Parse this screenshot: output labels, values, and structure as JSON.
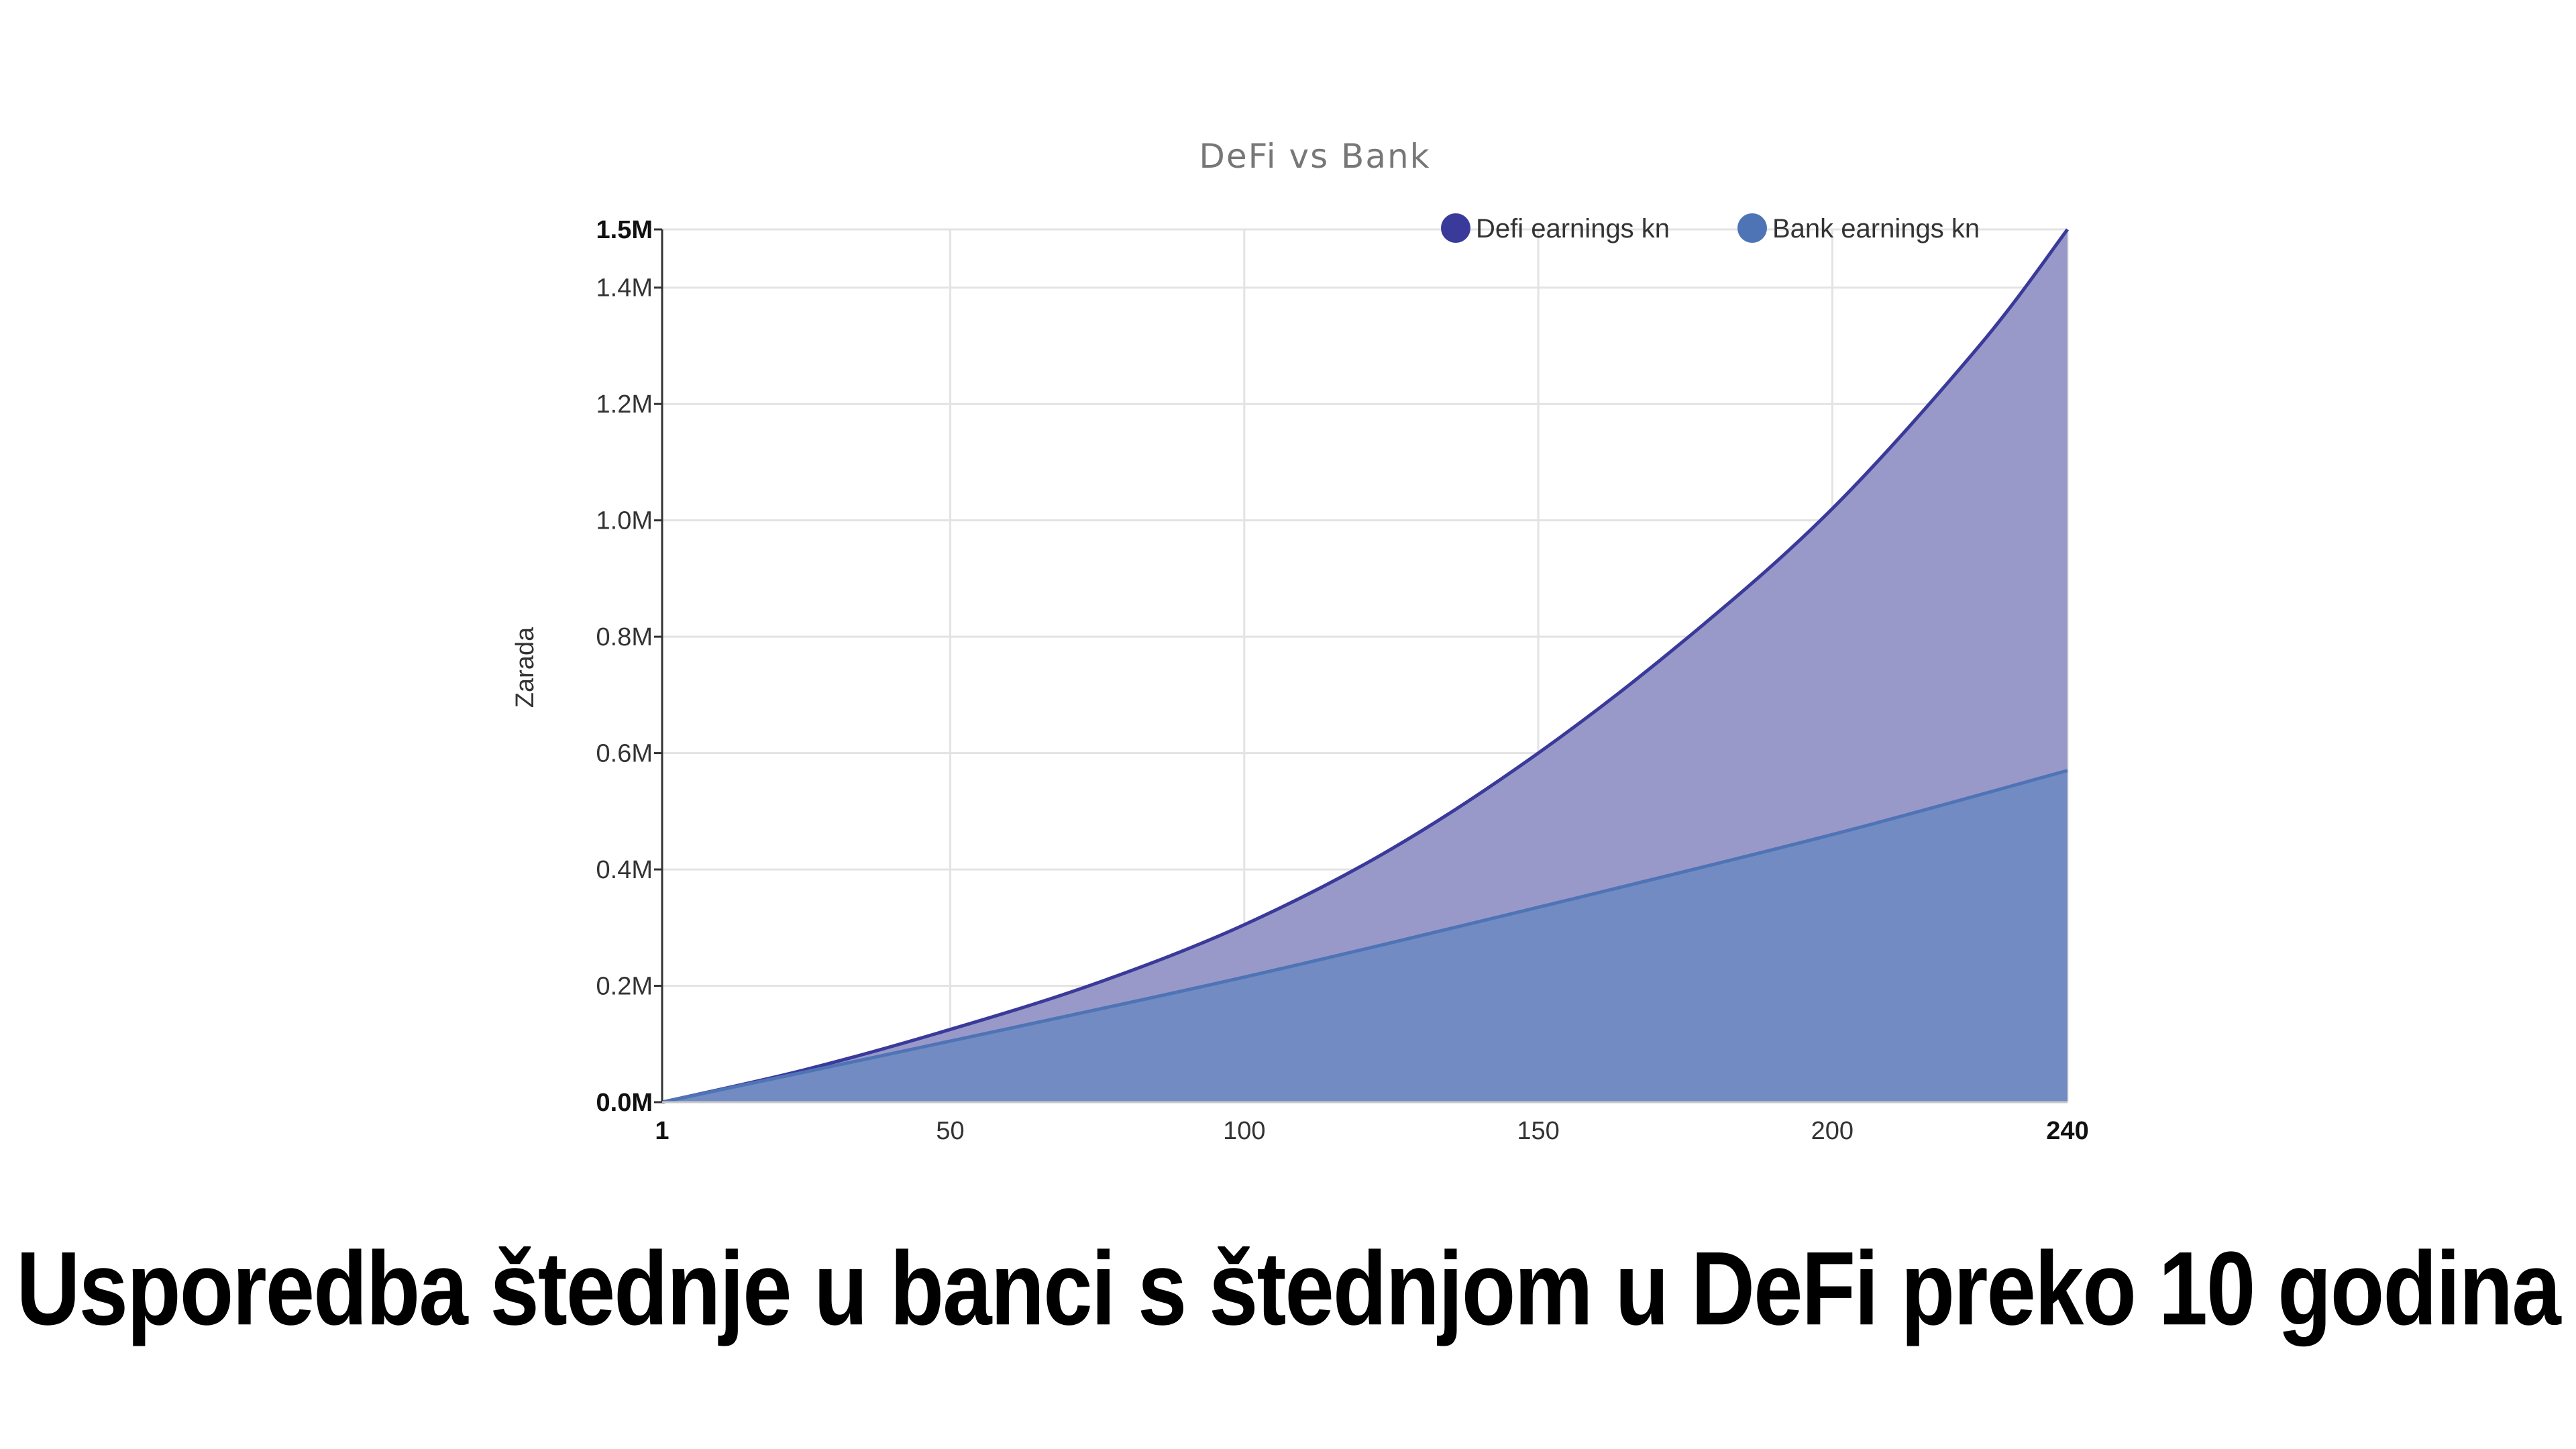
{
  "chart_data": {
    "type": "area",
    "title": "DeFi vs Bank",
    "xlabel": "",
    "ylabel": "Zarada",
    "xlim": [
      1,
      240
    ],
    "ylim": [
      0,
      1500000
    ],
    "x_ticks": [
      {
        "value": 1,
        "label": "1",
        "bold": true
      },
      {
        "value": 50,
        "label": "50",
        "bold": false
      },
      {
        "value": 100,
        "label": "100",
        "bold": false
      },
      {
        "value": 150,
        "label": "150",
        "bold": false
      },
      {
        "value": 200,
        "label": "200",
        "bold": false
      },
      {
        "value": 240,
        "label": "240",
        "bold": true
      }
    ],
    "y_ticks": [
      {
        "value": 0,
        "label": "0.0M",
        "bold": true
      },
      {
        "value": 200000,
        "label": "0.2M",
        "bold": false
      },
      {
        "value": 400000,
        "label": "0.4M",
        "bold": false
      },
      {
        "value": 600000,
        "label": "0.6M",
        "bold": false
      },
      {
        "value": 800000,
        "label": "0.8M",
        "bold": false
      },
      {
        "value": 1000000,
        "label": "1.0M",
        "bold": false
      },
      {
        "value": 1200000,
        "label": "1.2M",
        "bold": false
      },
      {
        "value": 1400000,
        "label": "1.4M",
        "bold": false
      },
      {
        "value": 1500000,
        "label": "1.5M",
        "bold": true
      }
    ],
    "grid": true,
    "legend_position": "top-right",
    "series": [
      {
        "name": "Defi earnings kn",
        "color": "#3a3a9a",
        "fill": "#9999c9",
        "x": [
          1,
          25,
          50,
          75,
          100,
          125,
          150,
          175,
          200,
          225,
          240
        ],
        "values": [
          0,
          55000,
          125000,
          205000,
          305000,
          435000,
          600000,
          795000,
          1020000,
          1300000,
          1500000
        ]
      },
      {
        "name": "Bank earnings kn",
        "color": "#4f74b5",
        "fill": "#6f8ac2",
        "x": [
          1,
          50,
          100,
          150,
          200,
          240
        ],
        "values": [
          0,
          105000,
          215000,
          335000,
          460000,
          570000
        ]
      }
    ]
  },
  "caption": "Usporedba štednje u banci s štednjom u DeFi preko 10 godina"
}
